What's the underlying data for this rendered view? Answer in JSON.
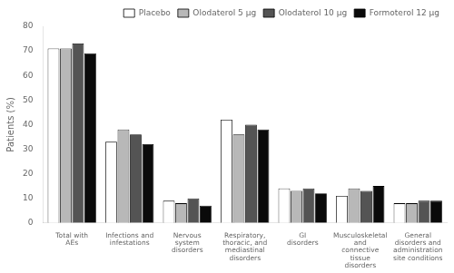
{
  "chart_data": {
    "type": "bar",
    "categories": [
      "Total with\nAEs",
      "Infections and\ninfestations",
      "Nervous\nsystem\ndisorders",
      "Respiratory,\nthoracic, and\nmediastinal\ndisorders",
      "GI\ndisorders",
      "Musculoskeletal\nand\nconnective\ntissue\ndisorders",
      "General\ndisorders and\nadministration\nsite conditions"
    ],
    "series": [
      {
        "name": "Placebo",
        "color": "#ffffff",
        "values": [
          71,
          33,
          9,
          42,
          14,
          11,
          8
        ]
      },
      {
        "name": "Olodaterol 5 μg",
        "color": "#b8b8b8",
        "values": [
          71,
          38,
          8,
          36,
          13,
          14,
          8
        ]
      },
      {
        "name": "Olodaterol 10 μg",
        "color": "#545454",
        "values": [
          73,
          36,
          10,
          40,
          14,
          13,
          9
        ]
      },
      {
        "name": "Formoterol 12 μg",
        "color": "#0a0a0a",
        "values": [
          69,
          32,
          7,
          38,
          12,
          15,
          9
        ]
      }
    ],
    "ylabel": "Patients (%)",
    "ylim": [
      0,
      80
    ],
    "yticks": [
      0,
      10,
      20,
      30,
      40,
      50,
      60,
      70,
      80
    ],
    "grid": false,
    "legend": "upper right"
  }
}
